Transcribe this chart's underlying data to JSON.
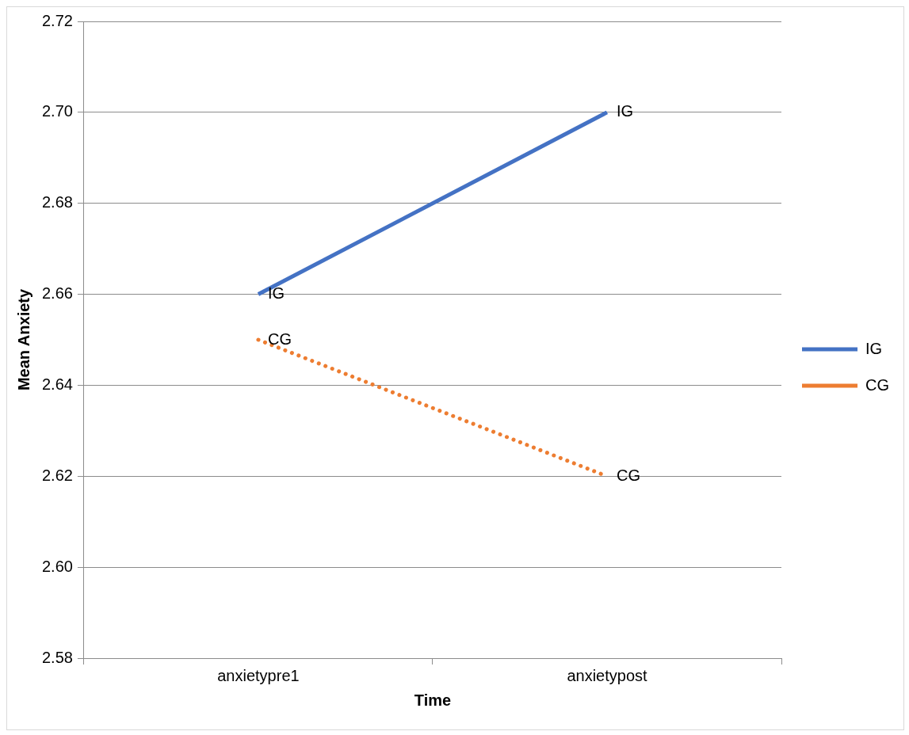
{
  "chart_data": {
    "type": "line",
    "xlabel": "Time",
    "ylabel": "Mean Anxiety",
    "categories": [
      "anxietypre1",
      "anxietypost"
    ],
    "series": [
      {
        "name": "IG",
        "color": "#4472c4",
        "values": [
          2.66,
          2.7
        ],
        "line_style": "solid"
      },
      {
        "name": "CG",
        "color": "#ed7d31",
        "values": [
          2.65,
          2.62
        ],
        "line_style": "dotted"
      }
    ],
    "ylim": [
      2.58,
      2.72
    ],
    "yticks": [
      {
        "value": 2.58,
        "label": "2.58"
      },
      {
        "value": 2.6,
        "label": "2.60"
      },
      {
        "value": 2.62,
        "label": "2.62"
      },
      {
        "value": 2.64,
        "label": "2.64"
      },
      {
        "value": 2.66,
        "label": "2.66"
      },
      {
        "value": 2.68,
        "label": "2.68"
      },
      {
        "value": 2.7,
        "label": "2.70"
      },
      {
        "value": 2.72,
        "label": "2.72"
      }
    ],
    "annotations": [
      {
        "text": "IG",
        "x": "anxietypre1",
        "y": 2.66
      },
      {
        "text": "CG",
        "x": "anxietypre1",
        "y": 2.65
      },
      {
        "text": "IG",
        "x": "anxietypost",
        "y": 2.7
      },
      {
        "text": "CG",
        "x": "anxietypost",
        "y": 2.62
      }
    ],
    "grid": "y",
    "legend": "right",
    "marker": "none"
  }
}
